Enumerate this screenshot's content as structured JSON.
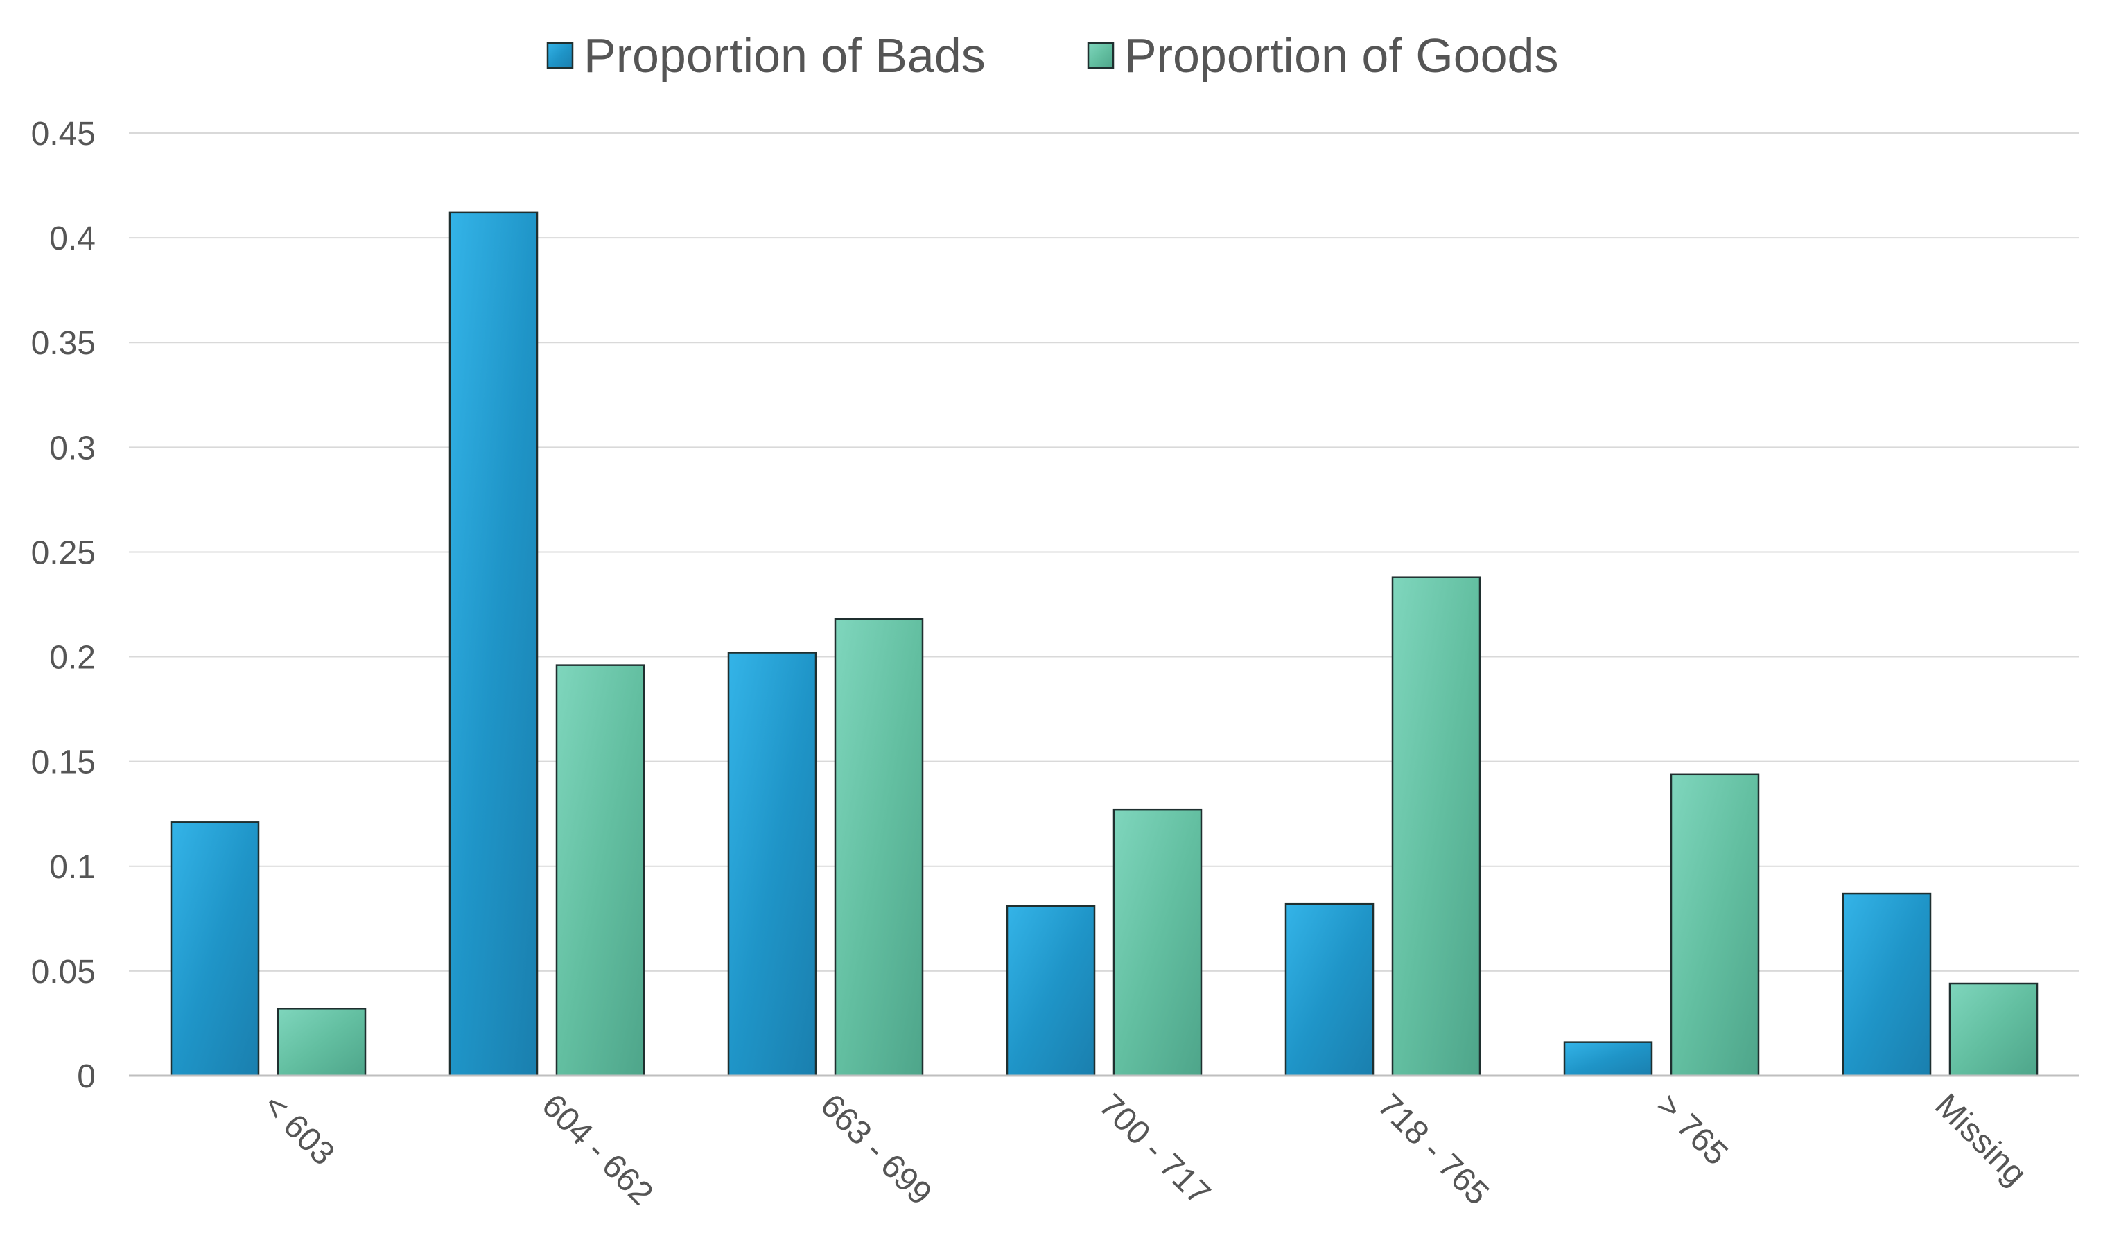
{
  "chart_data": {
    "type": "bar",
    "categories": [
      "< 603",
      "604 - 662",
      "663 - 699",
      "700 - 717",
      "718 - 765",
      "> 765",
      "Missing"
    ],
    "series": [
      {
        "name": "Proportion of Bads",
        "values": [
          0.121,
          0.412,
          0.202,
          0.081,
          0.082,
          0.016,
          0.087
        ],
        "color": "#1f92c4"
      },
      {
        "name": "Proportion of Goods",
        "values": [
          0.032,
          0.196,
          0.218,
          0.127,
          0.238,
          0.144,
          0.044
        ],
        "color": "#5cb89a"
      }
    ],
    "y_ticks": [
      "0",
      "0.05",
      "0.1",
      "0.15",
      "0.2",
      "0.25",
      "0.3",
      "0.35",
      "0.4",
      "0.45"
    ],
    "ylim": [
      0,
      0.45
    ],
    "grid": true,
    "legend_position": "top-center",
    "title": "",
    "xlabel": "",
    "ylabel": ""
  }
}
